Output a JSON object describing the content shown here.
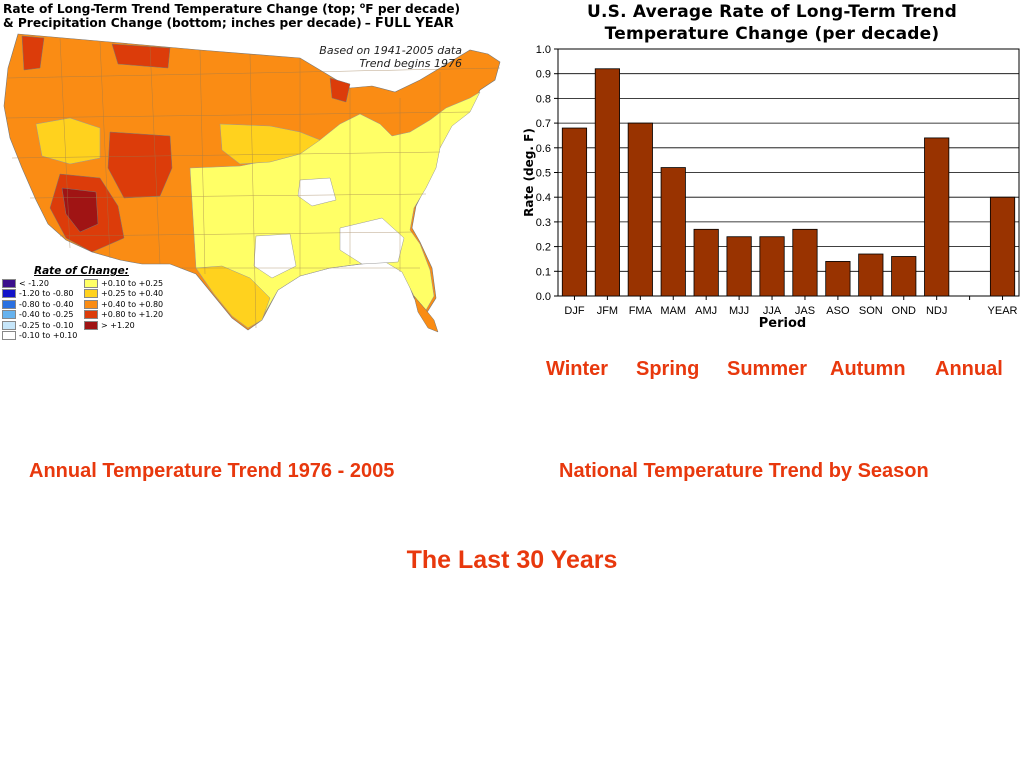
{
  "map": {
    "title_line1_a": "Rate of Long-Term Trend Temperature Change (top; ",
    "title_line1_sup": "o",
    "title_line1_b": "F per decade)",
    "title_line2": "&  Precipitation Change (bottom; inches per decade)",
    "title_dash": "–",
    "title_full_year": "FULL YEAR",
    "note_line1": "Based on 1941-2005 data",
    "note_line2": "Trend begins 1976",
    "legend_title": "Rate of Change:",
    "legend": [
      {
        "label": "< -1.20",
        "color": "#3b0f8c"
      },
      {
        "label": "-1.20 to -0.80",
        "color": "#1414c8"
      },
      {
        "label": "-0.80 to -0.40",
        "color": "#2a70e0"
      },
      {
        "label": "-0.40 to -0.25",
        "color": "#66b2ee"
      },
      {
        "label": "-0.25 to -0.10",
        "color": "#c6e6fa"
      },
      {
        "label": "-0.10 to +0.10",
        "color": "#ffffff"
      },
      {
        "label": "+0.10 to +0.25",
        "color": "#ffff66"
      },
      {
        "label": "+0.25 to +0.40",
        "color": "#ffd21e"
      },
      {
        "label": "+0.40 to +0.80",
        "color": "#fa8c14"
      },
      {
        "label": "+0.80 to +1.20",
        "color": "#dc3c0a"
      },
      {
        "label": "> +1.20",
        "color": "#a01414"
      }
    ]
  },
  "chart_data": {
    "type": "bar",
    "title": "U.S. Average Rate of Long-Term Trend Temperature Change (per decade)",
    "title_line1": "U.S. Average Rate of Long-Term Trend",
    "title_line2": "Temperature Change (per decade)",
    "xlabel": "Period",
    "ylabel": "Rate (deg. F)",
    "ylim": [
      0,
      1.0
    ],
    "yticks": [
      "0.0",
      "0.1",
      "0.2",
      "0.3",
      "0.4",
      "0.5",
      "0.6",
      "0.7",
      "0.8",
      "0.9",
      "1.0"
    ],
    "categories": [
      "DJF",
      "JFM",
      "FMA",
      "MAM",
      "AMJ",
      "MJJ",
      "JJA",
      "JAS",
      "ASO",
      "SON",
      "OND",
      "NDJ",
      "",
      "YEAR"
    ],
    "values": [
      0.68,
      0.92,
      0.7,
      0.52,
      0.27,
      0.24,
      0.24,
      0.27,
      0.14,
      0.17,
      0.16,
      0.64,
      null,
      0.4
    ],
    "bar_color": "#993300",
    "grid": true,
    "legend": "none"
  },
  "captions": {
    "seasons": [
      "Winter",
      "Spring",
      "Summer",
      "Autumn",
      "Annual"
    ],
    "map_caption": "Annual Temperature Trend 1976 - 2005",
    "chart_caption": "National Temperature Trend by Season",
    "page_title": "The Last 30 Years"
  },
  "colors": {
    "caption": "#e8380d",
    "bar": "#993300"
  }
}
